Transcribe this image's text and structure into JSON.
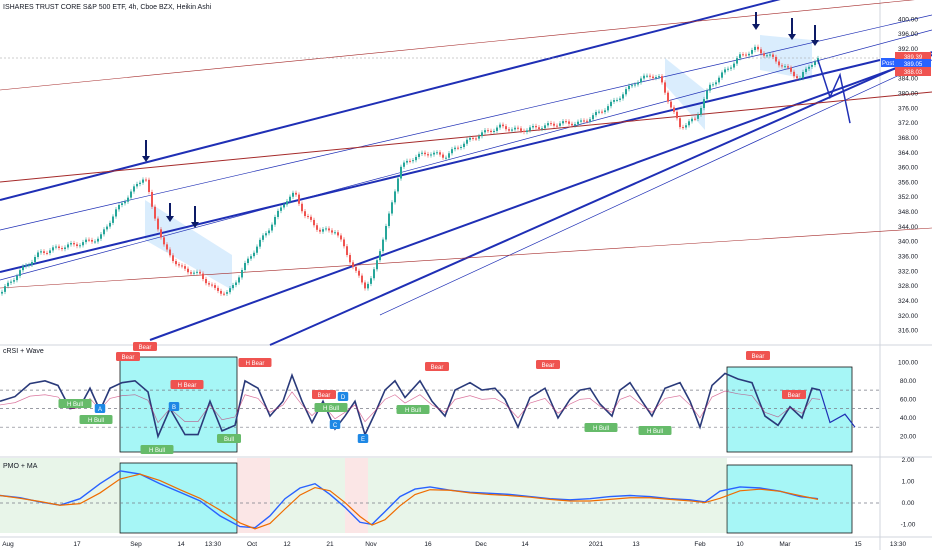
{
  "header": {
    "title": "ISHARES TRUST CORE S&P 500 ETF, 4h, Cboe BZX, Heikin Ashi"
  },
  "panes": {
    "crsi_label": "cRSI + Wave",
    "pmo_label": "PMO + MA"
  },
  "colors": {
    "bull": "#26a69a",
    "bear": "#ef5350",
    "channel": "#1f2fb5",
    "trend_red": "#a52a2a",
    "crsi_line": "#2a3a7a",
    "highlight_box": "#00e5e5",
    "bear_zone": "#ef9a9a",
    "bull_zone": "#a5d6a7"
  },
  "price_scale": {
    "ticks": [
      "400.00",
      "396.00",
      "392.00",
      "388.00",
      "384.00",
      "380.00",
      "376.00",
      "372.00",
      "368.00",
      "364.00",
      "360.00",
      "356.00",
      "352.00",
      "348.00",
      "344.00",
      "340.00",
      "336.00",
      "332.00",
      "328.00",
      "324.00",
      "320.00",
      "316.00"
    ],
    "badges": [
      {
        "text": "389.39",
        "color": "#ef5350"
      },
      {
        "text": "Post",
        "color": "#2962ff"
      },
      {
        "text": "389.05",
        "color": "#2962ff"
      },
      {
        "text": "388.03",
        "color": "#ef5350"
      }
    ]
  },
  "crsi_scale": {
    "ticks": [
      "100.00",
      "80.00",
      "60.00",
      "40.00",
      "20.00"
    ]
  },
  "pmo_scale": {
    "ticks": [
      "2.00",
      "1.00",
      "0.00",
      "-1.00"
    ]
  },
  "time_axis": {
    "ticks": [
      "Aug",
      "17",
      "Sep",
      "14",
      "13:30",
      "Oct",
      "12",
      "21",
      "Nov",
      "16",
      "Dec",
      "14",
      "2021",
      "13",
      "Feb",
      "10",
      "Mar",
      "15",
      "13:30"
    ]
  },
  "crsi_labels": [
    {
      "text": "Bear",
      "type": "bear"
    },
    {
      "text": "H Bear",
      "type": "bear"
    },
    {
      "text": "Bear",
      "type": "bear"
    },
    {
      "text": "H Bear",
      "type": "bear"
    },
    {
      "text": "Bear",
      "type": "bear"
    },
    {
      "text": "Bear",
      "type": "bear"
    },
    {
      "text": "Bear",
      "type": "bear"
    },
    {
      "text": "Bear",
      "type": "bear"
    },
    {
      "text": "Bear",
      "type": "bear"
    },
    {
      "text": "H Bull",
      "type": "bull"
    },
    {
      "text": "H Bull",
      "type": "bull"
    },
    {
      "text": "H Bull",
      "type": "bull"
    },
    {
      "text": "Bull",
      "type": "bull"
    },
    {
      "text": "H Bull",
      "type": "bull"
    },
    {
      "text": "H Bull",
      "type": "bull"
    },
    {
      "text": "H Bull",
      "type": "bull"
    },
    {
      "text": "H Bull",
      "type": "bull"
    },
    {
      "text": "A",
      "type": "wave"
    },
    {
      "text": "C",
      "type": "wave"
    },
    {
      "text": "E",
      "type": "wave"
    },
    {
      "text": "D",
      "type": "wave"
    },
    {
      "text": "B",
      "type": "wave"
    }
  ],
  "chart_data": {
    "type": "candlestick",
    "price_ylim": [
      314,
      402
    ],
    "crsi_ylim": [
      0,
      110
    ],
    "pmo_ylim": [
      -1.4,
      2.1
    ],
    "price_path": [
      [
        0,
        326
      ],
      [
        20,
        332
      ],
      [
        40,
        337
      ],
      [
        60,
        338.5
      ],
      [
        80,
        339.5
      ],
      [
        100,
        341
      ],
      [
        115,
        348
      ],
      [
        130,
        353
      ],
      [
        145,
        358
      ],
      [
        152,
        349
      ],
      [
        165,
        338
      ],
      [
        180,
        333
      ],
      [
        200,
        331
      ],
      [
        215,
        327
      ],
      [
        228,
        326
      ],
      [
        235,
        329
      ],
      [
        250,
        336
      ],
      [
        270,
        344
      ],
      [
        285,
        351
      ],
      [
        295,
        353
      ],
      [
        305,
        347
      ],
      [
        320,
        343
      ],
      [
        335,
        343
      ],
      [
        345,
        338
      ],
      [
        355,
        332
      ],
      [
        365,
        328
      ],
      [
        372,
        330
      ],
      [
        380,
        338
      ],
      [
        390,
        348
      ],
      [
        400,
        360
      ],
      [
        415,
        363
      ],
      [
        430,
        364
      ],
      [
        445,
        363
      ],
      [
        460,
        366
      ],
      [
        480,
        369
      ],
      [
        500,
        371
      ],
      [
        520,
        370
      ],
      [
        540,
        371
      ],
      [
        560,
        372
      ],
      [
        580,
        372
      ],
      [
        600,
        375
      ],
      [
        615,
        378
      ],
      [
        635,
        383
      ],
      [
        650,
        385
      ],
      [
        660,
        384
      ],
      [
        670,
        377
      ],
      [
        680,
        371
      ],
      [
        695,
        373
      ],
      [
        710,
        382
      ],
      [
        725,
        386
      ],
      [
        740,
        390
      ],
      [
        755,
        392
      ],
      [
        770,
        390
      ],
      [
        780,
        388
      ],
      [
        790,
        386
      ],
      [
        800,
        384
      ],
      [
        810,
        388
      ],
      [
        818,
        389
      ]
    ],
    "projection": [
      [
        818,
        389
      ],
      [
        830,
        379
      ],
      [
        840,
        385
      ],
      [
        850,
        372
      ]
    ],
    "crsi_path": [
      [
        0,
        58
      ],
      [
        15,
        63
      ],
      [
        30,
        77
      ],
      [
        45,
        80
      ],
      [
        58,
        75
      ],
      [
        70,
        50
      ],
      [
        80,
        52
      ],
      [
        90,
        72
      ],
      [
        100,
        48
      ],
      [
        110,
        72
      ],
      [
        122,
        78
      ],
      [
        135,
        80
      ],
      [
        148,
        68
      ],
      [
        158,
        20
      ],
      [
        170,
        50
      ],
      [
        185,
        22
      ],
      [
        198,
        22
      ],
      [
        210,
        58
      ],
      [
        222,
        26
      ],
      [
        235,
        32
      ],
      [
        245,
        80
      ],
      [
        258,
        72
      ],
      [
        270,
        42
      ],
      [
        283,
        58
      ],
      [
        292,
        86
      ],
      [
        302,
        58
      ],
      [
        312,
        35
      ],
      [
        323,
        58
      ],
      [
        335,
        28
      ],
      [
        345,
        42
      ],
      [
        355,
        58
      ],
      [
        365,
        22
      ],
      [
        375,
        45
      ],
      [
        385,
        70
      ],
      [
        395,
        80
      ],
      [
        405,
        62
      ],
      [
        420,
        80
      ],
      [
        432,
        58
      ],
      [
        445,
        42
      ],
      [
        455,
        70
      ],
      [
        470,
        78
      ],
      [
        482,
        70
      ],
      [
        495,
        72
      ],
      [
        505,
        60
      ],
      [
        518,
        30
      ],
      [
        530,
        62
      ],
      [
        545,
        72
      ],
      [
        558,
        40
      ],
      [
        570,
        60
      ],
      [
        580,
        70
      ],
      [
        590,
        72
      ],
      [
        600,
        55
      ],
      [
        612,
        42
      ],
      [
        620,
        70
      ],
      [
        630,
        78
      ],
      [
        642,
        58
      ],
      [
        652,
        42
      ],
      [
        665,
        72
      ],
      [
        680,
        78
      ],
      [
        690,
        58
      ],
      [
        700,
        30
      ],
      [
        712,
        75
      ],
      [
        725,
        88
      ],
      [
        738,
        82
      ],
      [
        752,
        78
      ],
      [
        765,
        42
      ],
      [
        778,
        32
      ],
      [
        790,
        52
      ],
      [
        802,
        40
      ],
      [
        812,
        72
      ],
      [
        820,
        70
      ]
    ],
    "crsi_projection": [
      [
        820,
        70
      ],
      [
        830,
        35
      ],
      [
        845,
        44
      ],
      [
        855,
        30
      ]
    ],
    "pmo_path": [
      [
        0,
        0.35
      ],
      [
        20,
        0.25
      ],
      [
        40,
        0.05
      ],
      [
        60,
        -0.1
      ],
      [
        80,
        0.2
      ],
      [
        100,
        0.9
      ],
      [
        120,
        1.5
      ],
      [
        140,
        1.35
      ],
      [
        160,
        0.9
      ],
      [
        180,
        0.5
      ],
      [
        200,
        0.1
      ],
      [
        220,
        -0.6
      ],
      [
        240,
        -1.1
      ],
      [
        255,
        -1.15
      ],
      [
        270,
        -0.6
      ],
      [
        285,
        0.2
      ],
      [
        300,
        0.7
      ],
      [
        315,
        0.9
      ],
      [
        330,
        0.4
      ],
      [
        345,
        -0.2
      ],
      [
        360,
        -0.9
      ],
      [
        372,
        -1.0
      ],
      [
        385,
        -0.4
      ],
      [
        400,
        0.3
      ],
      [
        415,
        0.65
      ],
      [
        430,
        0.75
      ],
      [
        450,
        0.6
      ],
      [
        470,
        0.5
      ],
      [
        490,
        0.45
      ],
      [
        510,
        0.4
      ],
      [
        530,
        0.3
      ],
      [
        550,
        0.2
      ],
      [
        570,
        0.15
      ],
      [
        590,
        0.2
      ],
      [
        610,
        0.3
      ],
      [
        630,
        0.35
      ],
      [
        650,
        0.3
      ],
      [
        670,
        0.2
      ],
      [
        690,
        0.15
      ],
      [
        705,
        0.05
      ],
      [
        720,
        0.55
      ],
      [
        740,
        0.75
      ],
      [
        760,
        0.7
      ],
      [
        780,
        0.55
      ],
      [
        800,
        0.3
      ],
      [
        818,
        0.2
      ]
    ]
  }
}
